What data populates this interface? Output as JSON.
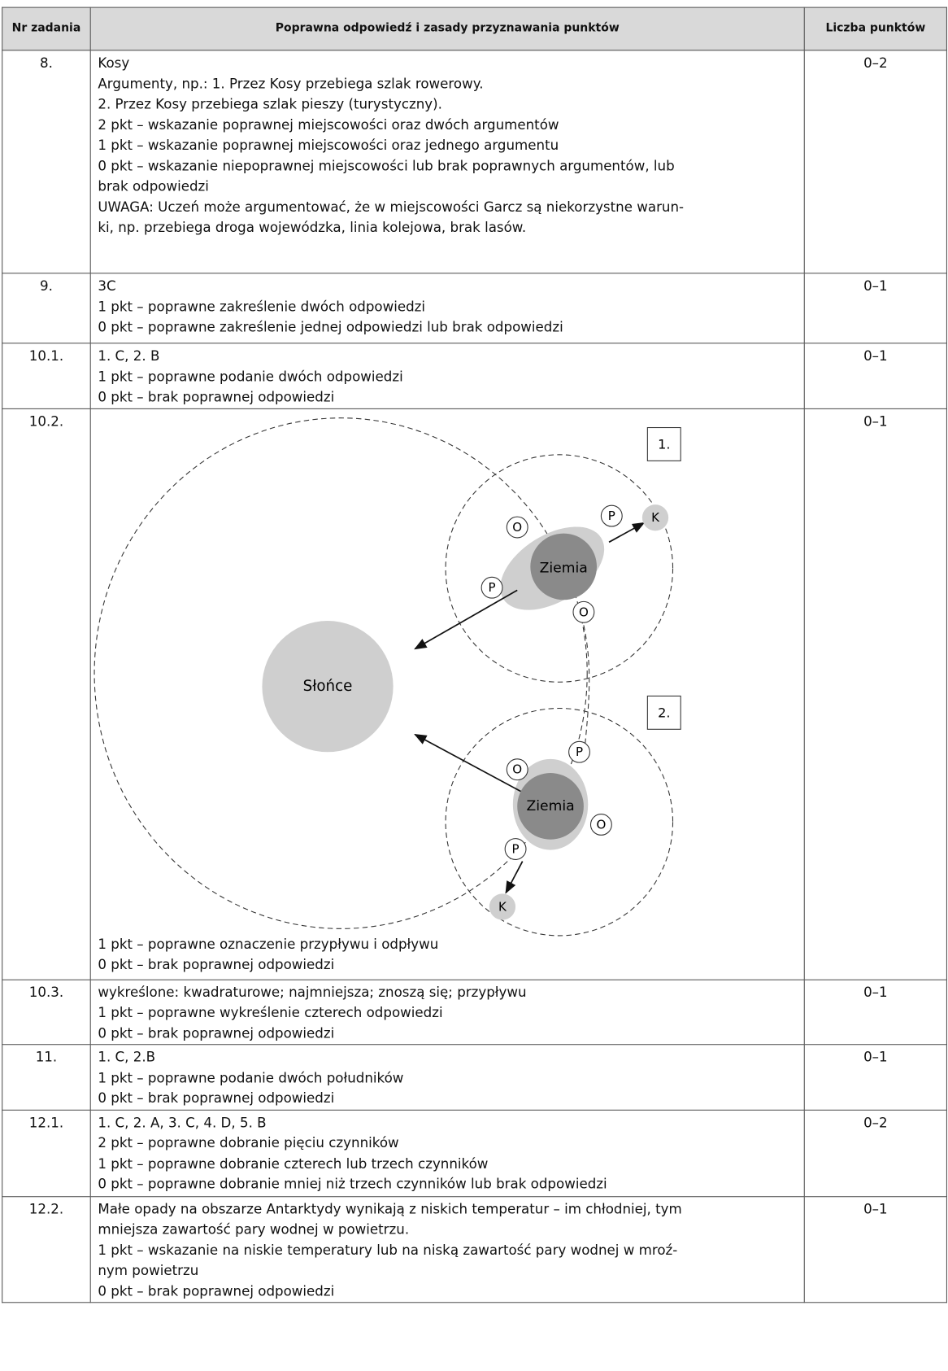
{
  "header": {
    "nr": "Nr zadania",
    "answer": "Poprawna odpowiedź i zasady przyznawania punktów",
    "points": "Liczba punktów"
  },
  "rows": [
    {
      "nr": "8.",
      "lines": [
        "Kosy",
        "Argumenty, np.: 1. Przez Kosy przebiega szlak rowerowy.",
        "2. Przez Kosy przebiega szlak pieszy (turystyczny).",
        "2 pkt – wskazanie poprawnej miejscowości oraz dwóch argumentów",
        "1 pkt – wskazanie poprawnej miejscowości oraz jednego argumentu",
        "0 pkt – wskazanie niepoprawnej miejscowości lub brak poprawnych argumentów, lub",
        "brak odpowiedzi",
        "UWAGA: Uczeń może argumentować, że w miejscowości Garcz są niekorzystne warun-",
        "ki, np. przebiega droga wojewódzka, linia kolejowa, brak lasów."
      ],
      "points": "0–2"
    },
    {
      "nr": "9.",
      "lines": [
        "3C",
        "1 pkt – poprawne zakreślenie dwóch odpowiedzi",
        "0 pkt – poprawne zakreślenie jednej odpowiedzi lub brak odpowiedzi"
      ],
      "points": "0–1"
    },
    {
      "nr": "10.1.",
      "lines": [
        "1. C, 2. B",
        "1 pkt – poprawne podanie dwóch odpowiedzi",
        "0 pkt – brak poprawnej odpowiedzi"
      ],
      "points": "0–1"
    },
    {
      "nr": "10.2.",
      "lines": [
        "1 pkt – poprawne oznaczenie przypływu i odpływu",
        "0 pkt – brak poprawnej odpowiedzi"
      ],
      "points": "0–1"
    },
    {
      "nr": "10.3.",
      "lines": [
        "wykreślone: kwadraturowe; najmniejsza; znoszą się; przypływu",
        "1 pkt – poprawne wykreślenie czterech odpowiedzi",
        "0 pkt – brak poprawnej odpowiedzi"
      ],
      "points": "0–1"
    },
    {
      "nr": "11.",
      "lines": [
        "1. C, 2.B",
        "1 pkt – poprawne podanie dwóch południków",
        "0 pkt – brak poprawnej odpowiedzi"
      ],
      "points": "0–1"
    },
    {
      "nr": "12.1.",
      "lines": [
        "1. C, 2. A, 3. C, 4. D, 5. B",
        "2 pkt – poprawne dobranie pięciu czynników",
        "1 pkt – poprawne dobranie czterech lub trzech czynników",
        "0 pkt – poprawne dobranie mniej niż trzech czynników lub brak odpowiedzi"
      ],
      "points": "0–2"
    },
    {
      "nr": "12.2.",
      "lines": [
        "Małe opady na obszarze Antarktydy wynikają z niskich temperatur – im chłodniej, tym",
        "mniejsza zawartość pary wodnej w powietrzu.",
        "1 pkt – wskazanie na niskie temperatury lub na niską zawartość pary wodnej w mroź-",
        "nym powietrzu",
        "0 pkt – brak poprawnej odpowiedzi"
      ],
      "points": "0–1"
    }
  ],
  "diagram": {
    "box1": "1.",
    "box2": "2.",
    "sun": "Słońce",
    "earth": "Ziemia",
    "high": "P",
    "low": "O",
    "k": "K"
  }
}
